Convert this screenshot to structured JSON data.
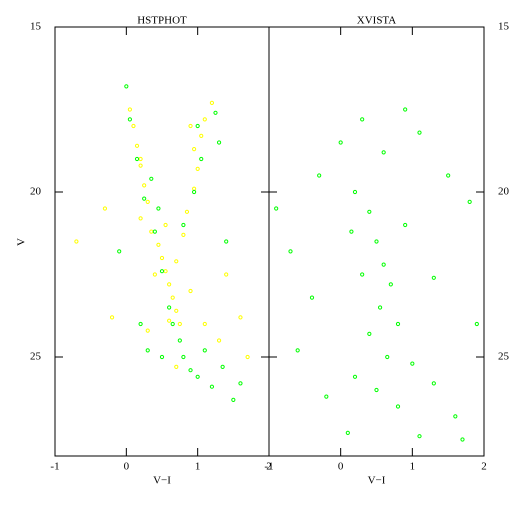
{
  "chart_data": [
    {
      "type": "scatter",
      "title": "HSTPHOT",
      "xlabel": "V−I",
      "ylabel": "V",
      "xlim": [
        -1,
        2
      ],
      "ylim": [
        28,
        15
      ],
      "xticks": [
        -1,
        0,
        1,
        2
      ],
      "yticks": [
        15,
        20,
        25
      ],
      "y_axis_side": "left",
      "series": [
        {
          "color": "#ffff00",
          "x": [
            0.05,
            0.1,
            0.15,
            0.2,
            0.25,
            0.3,
            0.2,
            0.35,
            0.45,
            0.5,
            0.55,
            0.6,
            0.65,
            0.7,
            0.75,
            0.6,
            0.9,
            0.95,
            1.0,
            0.95,
            0.85,
            0.8,
            0.7,
            1.2,
            1.1,
            -0.3,
            -0.7,
            1.4,
            1.6,
            1.3,
            0.3,
            -0.2,
            0.4,
            0.9,
            1.1,
            1.7,
            0.7,
            0.2,
            0.55,
            1.05
          ],
          "y": [
            17.5,
            18,
            18.6,
            19.2,
            19.8,
            20.3,
            20.8,
            21.2,
            21.6,
            22,
            22.4,
            22.8,
            23.2,
            23.6,
            24,
            23.9,
            18,
            18.7,
            19.3,
            19.9,
            20.6,
            21.3,
            22.1,
            17.3,
            17.8,
            20.5,
            21.5,
            22.5,
            23.8,
            24.5,
            24.2,
            23.8,
            22.5,
            23,
            24,
            25,
            25.3,
            19,
            21,
            18.3
          ]
        },
        {
          "color": "#00ff00",
          "x": [
            0.0,
            0.05,
            0.15,
            0.25,
            0.4,
            0.5,
            0.6,
            0.75,
            0.8,
            0.9,
            1.0,
            1.2,
            1.5,
            1.6,
            0.5,
            0.3,
            0.2,
            1.0,
            1.05,
            0.95,
            0.8,
            1.3,
            1.25,
            0.35,
            -0.1,
            1.4,
            0.65,
            1.1,
            1.35,
            0.45
          ],
          "y": [
            16.8,
            17.8,
            19,
            20.2,
            21.2,
            22.4,
            23.5,
            24.5,
            25,
            25.4,
            25.6,
            25.9,
            26.3,
            25.8,
            25,
            24.8,
            24,
            18,
            19,
            20,
            21,
            18.5,
            17.6,
            19.6,
            21.8,
            21.5,
            24,
            24.8,
            25.3,
            20.5
          ]
        }
      ]
    },
    {
      "type": "scatter",
      "title": "XVISTA",
      "xlabel": "V−I",
      "xlim": [
        -1,
        2
      ],
      "ylim": [
        28,
        15
      ],
      "xticks": [
        -1,
        0,
        1,
        2
      ],
      "yticks": [
        15,
        20,
        25
      ],
      "y_axis_side": "right",
      "series": [
        {
          "color": "#00ff00",
          "x": [
            -0.9,
            -0.7,
            -0.3,
            0,
            0.3,
            0.6,
            0.9,
            1.1,
            1.5,
            1.8,
            0.2,
            0.4,
            0.5,
            0.6,
            0.3,
            0.7,
            0.55,
            0.8,
            0.4,
            0.65,
            1.0,
            0.2,
            1.3,
            0.8,
            -0.2,
            1.6,
            0.1,
            1.1,
            1.9,
            -0.6,
            0.9,
            0.15,
            1.3,
            -0.4,
            0.5,
            1.7
          ],
          "y": [
            20.5,
            21.8,
            19.5,
            18.5,
            17.8,
            18.8,
            17.5,
            18.2,
            19.5,
            20.3,
            20,
            20.6,
            21.5,
            22.2,
            22.5,
            22.8,
            23.5,
            24,
            24.3,
            25,
            25.2,
            25.6,
            25.8,
            26.5,
            26.2,
            26.8,
            27.3,
            27.4,
            24,
            24.8,
            21,
            21.2,
            22.6,
            23.2,
            26,
            27.5
          ]
        }
      ]
    }
  ]
}
